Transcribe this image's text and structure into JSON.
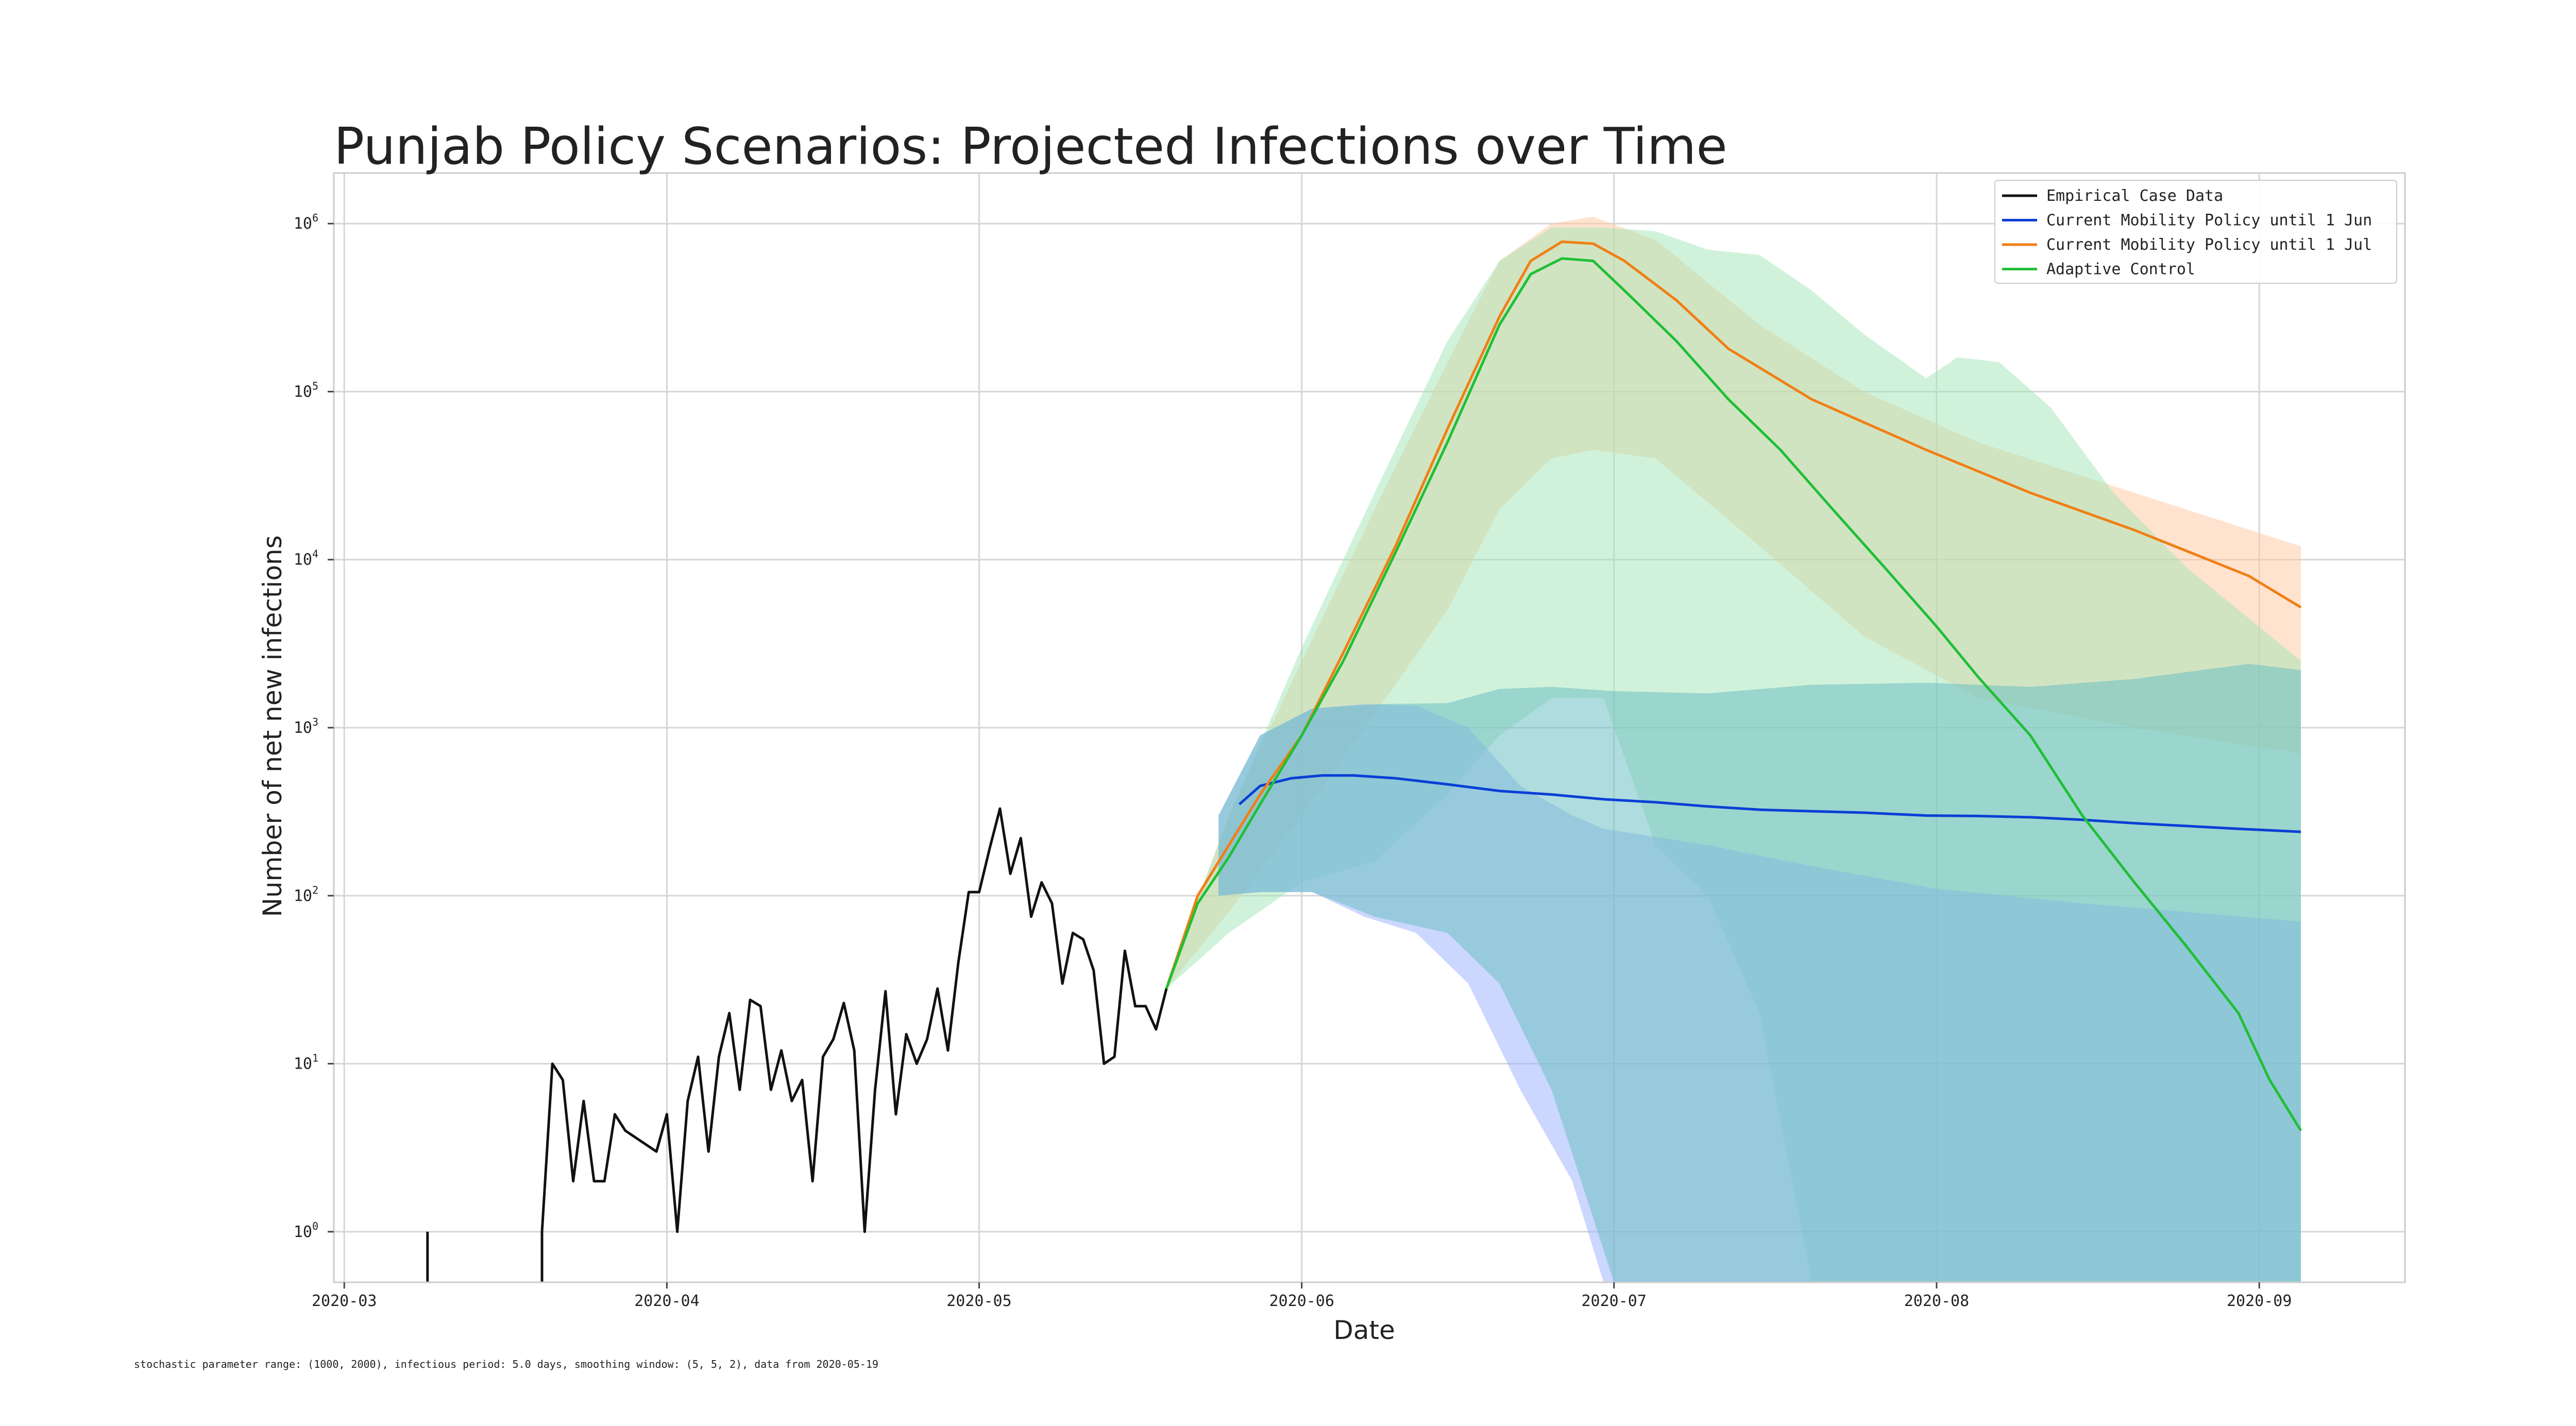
{
  "chart_data": {
    "type": "line",
    "title": "Punjab Policy Scenarios: Projected Infections over Time",
    "xlabel": "Date",
    "ylabel": "Number of net new infections",
    "yscale": "log",
    "ylim": [
      0.5,
      2000000
    ],
    "xlim": [
      "2020-02-29",
      "2020-09-15"
    ],
    "grid": true,
    "legend_position": "top-right",
    "footnote": "stochastic parameter range: (1000, 2000), infectious period: 5.0 days, smoothing window: (5, 5, 2), data from 2020-05-19",
    "x_ticks": [
      "2020-03",
      "2020-04",
      "2020-05",
      "2020-06",
      "2020-07",
      "2020-08",
      "2020-09"
    ],
    "x_tick_dates": [
      "2020-03-01",
      "2020-04-01",
      "2020-05-01",
      "2020-06-01",
      "2020-07-01",
      "2020-08-01",
      "2020-09-01"
    ],
    "y_ticks": [
      {
        "base": "10",
        "exp": "0",
        "value": 1
      },
      {
        "base": "10",
        "exp": "1",
        "value": 10
      },
      {
        "base": "10",
        "exp": "2",
        "value": 100
      },
      {
        "base": "10",
        "exp": "3",
        "value": 1000
      },
      {
        "base": "10",
        "exp": "4",
        "value": 10000
      },
      {
        "base": "10",
        "exp": "5",
        "value": 100000
      },
      {
        "base": "10",
        "exp": "6",
        "value": 1000000
      }
    ],
    "series": [
      {
        "name": "Empirical Case Data",
        "color": "#111111",
        "segments": [
          {
            "x": [
              "2020-03-09",
              "2020-03-09"
            ],
            "y": [
              0.5,
              1
            ]
          },
          {
            "x": [
              "2020-03-20",
              "2020-03-20",
              "2020-03-21",
              "2020-03-22",
              "2020-03-23",
              "2020-03-24",
              "2020-03-25",
              "2020-03-26",
              "2020-03-27",
              "2020-03-28",
              "2020-03-31",
              "2020-04-01",
              "2020-04-02",
              "2020-04-03",
              "2020-04-04",
              "2020-04-05",
              "2020-04-06",
              "2020-04-07",
              "2020-04-08",
              "2020-04-09",
              "2020-04-10",
              "2020-04-11",
              "2020-04-12",
              "2020-04-13",
              "2020-04-14",
              "2020-04-15",
              "2020-04-16",
              "2020-04-17",
              "2020-04-18",
              "2020-04-19",
              "2020-04-20",
              "2020-04-21",
              "2020-04-22",
              "2020-04-23",
              "2020-04-24",
              "2020-04-25",
              "2020-04-26",
              "2020-04-27",
              "2020-04-28",
              "2020-04-29",
              "2020-04-30",
              "2020-05-01",
              "2020-05-02",
              "2020-05-03",
              "2020-05-04",
              "2020-05-05",
              "2020-05-06",
              "2020-05-07",
              "2020-05-08",
              "2020-05-09",
              "2020-05-10",
              "2020-05-11",
              "2020-05-12",
              "2020-05-13",
              "2020-05-14",
              "2020-05-15",
              "2020-05-16",
              "2020-05-17",
              "2020-05-18",
              "2020-05-19"
            ],
            "y": [
              0.5,
              1,
              10,
              8,
              2,
              6,
              2,
              2,
              5,
              4,
              3,
              5,
              1,
              6,
              11,
              3,
              11,
              20,
              7,
              24,
              22,
              7,
              12,
              6,
              8,
              2,
              11,
              14,
              23,
              12,
              1,
              7,
              27,
              5,
              15,
              10,
              14,
              28,
              12,
              40,
              105,
              105,
              190,
              330,
              135,
              220,
              75,
              120,
              90,
              30,
              60,
              55,
              36,
              10,
              11,
              47,
              22,
              22,
              16,
              28
            ]
          }
        ]
      },
      {
        "name": "Current Mobility Policy until 1 Jun",
        "color": "#0a3fd6",
        "band_color": "#9ab0ff",
        "x": [
          "2020-05-26",
          "2020-05-28",
          "2020-05-31",
          "2020-06-03",
          "2020-06-06",
          "2020-06-10",
          "2020-06-15",
          "2020-06-20",
          "2020-06-25",
          "2020-06-30",
          "2020-07-05",
          "2020-07-10",
          "2020-07-15",
          "2020-07-20",
          "2020-07-25",
          "2020-07-31",
          "2020-08-05",
          "2020-08-10",
          "2020-08-15",
          "2020-08-20",
          "2020-08-25",
          "2020-08-30",
          "2020-09-05"
        ],
        "y": [
          350,
          450,
          500,
          520,
          520,
          500,
          460,
          420,
          400,
          375,
          360,
          340,
          325,
          318,
          312,
          300,
          298,
          293,
          283,
          270,
          260,
          250,
          240
        ],
        "band": {
          "x": [
            "2020-05-24",
            "2020-05-28",
            "2020-06-02",
            "2020-06-07",
            "2020-06-12",
            "2020-06-17",
            "2020-06-22",
            "2020-06-27",
            "2020-06-30",
            "2020-07-10",
            "2020-07-20",
            "2020-08-01",
            "2020-08-15",
            "2020-08-25",
            "2020-09-05"
          ],
          "upper": [
            300,
            900,
            1300,
            1380,
            1350,
            1000,
            450,
            300,
            250,
            200,
            150,
            110,
            90,
            80,
            70
          ],
          "lower": [
            100,
            105,
            105,
            75,
            60,
            30,
            7,
            2,
            0.5,
            0.5,
            0.5,
            0.5,
            0.5,
            0.5,
            0.5
          ]
        }
      },
      {
        "name": "Current Mobility Policy until 1 Jul",
        "color": "#f07f14",
        "band_color": "#ffc8a0",
        "x": [
          "2020-05-19",
          "2020-05-22",
          "2020-05-25",
          "2020-05-28",
          "2020-06-01",
          "2020-06-05",
          "2020-06-10",
          "2020-06-15",
          "2020-06-20",
          "2020-06-23",
          "2020-06-26",
          "2020-06-29",
          "2020-07-02",
          "2020-07-07",
          "2020-07-12",
          "2020-07-20",
          "2020-07-31",
          "2020-08-10",
          "2020-08-20",
          "2020-08-31",
          "2020-09-05"
        ],
        "y": [
          28,
          100,
          200,
          400,
          900,
          2800,
          12000,
          60000,
          280000,
          600000,
          780000,
          760000,
          600000,
          350000,
          180000,
          90000,
          45000,
          25000,
          15000,
          8000,
          5200
        ],
        "band": {
          "x": [
            "2020-05-19",
            "2020-05-25",
            "2020-06-01",
            "2020-06-08",
            "2020-06-15",
            "2020-06-20",
            "2020-06-25",
            "2020-06-29",
            "2020-07-05",
            "2020-07-15",
            "2020-07-25",
            "2020-08-05",
            "2020-08-20",
            "2020-09-05"
          ],
          "upper": [
            30,
            300,
            2500,
            20000,
            150000,
            600000,
            1000000,
            1100000,
            800000,
            250000,
            100000,
            50000,
            25000,
            12000
          ],
          "lower": [
            28,
            80,
            300,
            1200,
            5000,
            20000,
            40000,
            45000,
            40000,
            12000,
            3500,
            1500,
            1000,
            700
          ]
        }
      },
      {
        "name": "Adaptive Control",
        "color": "#1fbf36",
        "band_color": "#a3e6b5",
        "x": [
          "2020-05-19",
          "2020-05-22",
          "2020-05-25",
          "2020-05-28",
          "2020-06-01",
          "2020-06-05",
          "2020-06-10",
          "2020-06-15",
          "2020-06-20",
          "2020-06-23",
          "2020-06-26",
          "2020-06-29",
          "2020-07-02",
          "2020-07-07",
          "2020-07-12",
          "2020-07-17",
          "2020-07-22",
          "2020-07-27",
          "2020-08-01",
          "2020-08-05",
          "2020-08-10",
          "2020-08-15",
          "2020-08-20",
          "2020-08-25",
          "2020-08-30",
          "2020-09-02",
          "2020-09-05"
        ],
        "y": [
          28,
          90,
          170,
          350,
          900,
          2500,
          11000,
          50000,
          250000,
          500000,
          620000,
          600000,
          400000,
          200000,
          90000,
          45000,
          20000,
          9000,
          4000,
          2000,
          900,
          300,
          120,
          50,
          20,
          8,
          4
        ],
        "band": {
          "x": [
            "2020-05-19",
            "2020-05-25",
            "2020-06-01",
            "2020-06-08",
            "2020-06-15",
            "2020-06-20",
            "2020-06-25",
            "2020-06-30",
            "2020-07-05",
            "2020-07-10",
            "2020-07-15",
            "2020-07-20",
            "2020-07-25",
            "2020-07-31",
            "2020-08-03",
            "2020-08-07",
            "2020-08-12",
            "2020-08-18",
            "2020-08-25",
            "2020-09-05"
          ],
          "upper": [
            30,
            300,
            3000,
            25000,
            200000,
            600000,
            950000,
            950000,
            900000,
            700000,
            650000,
            400000,
            220000,
            120000,
            160000,
            150000,
            80000,
            25000,
            9000,
            2500
          ],
          "lower": [
            28,
            60,
            120,
            160,
            400,
            900,
            1500,
            1500,
            200,
            100,
            20,
            0.5,
            0.5,
            0.5,
            0.5,
            0.5,
            0.5,
            0.5,
            0.5,
            0.5
          ]
        }
      }
    ],
    "overlap_band": {
      "color": "#6ec0c2",
      "x": [
        "2020-05-24",
        "2020-05-28",
        "2020-06-02",
        "2020-06-08",
        "2020-06-15",
        "2020-06-20",
        "2020-06-25",
        "2020-07-01",
        "2020-07-10",
        "2020-07-20",
        "2020-07-31",
        "2020-08-10",
        "2020-08-20",
        "2020-08-31",
        "2020-09-05"
      ],
      "upper": [
        300,
        900,
        1300,
        1380,
        1400,
        1700,
        1750,
        1650,
        1600,
        1800,
        1850,
        1750,
        1950,
        2400,
        2200
      ],
      "lower": [
        100,
        105,
        105,
        75,
        60,
        30,
        7,
        0.5,
        0.5,
        0.5,
        0.5,
        0.5,
        0.5,
        0.5,
        0.5
      ]
    }
  }
}
